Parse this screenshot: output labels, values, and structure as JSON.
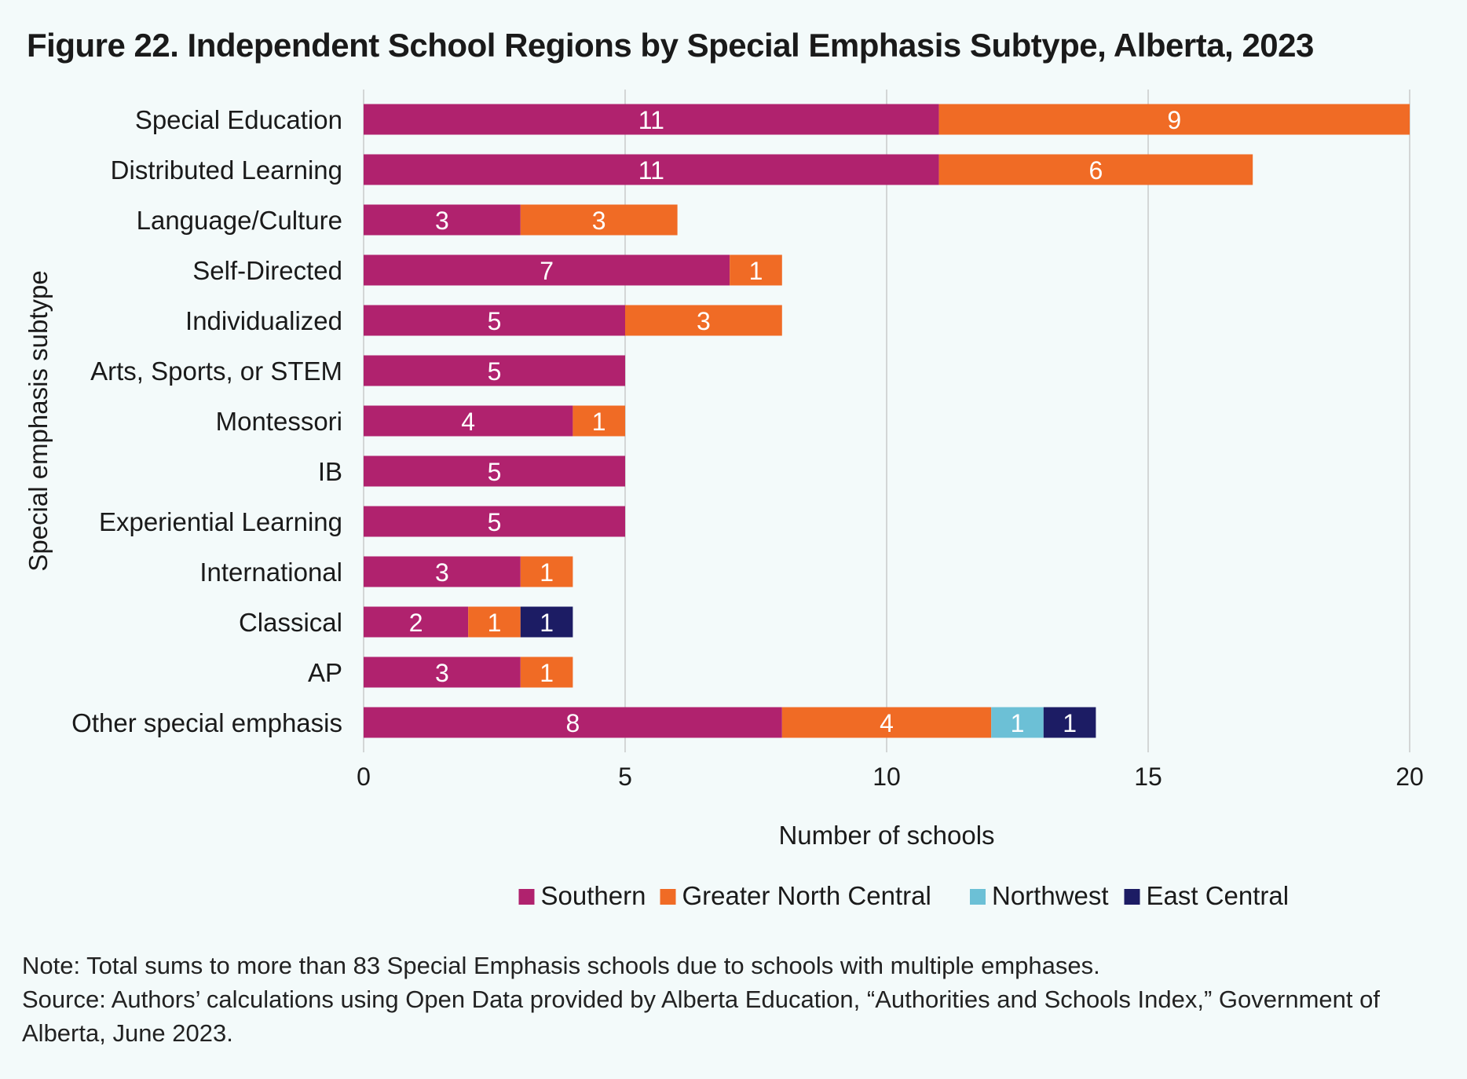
{
  "chart_data": {
    "type": "bar",
    "orientation": "horizontal",
    "stacked": true,
    "title": "Figure 22. Independent School Regions by Special Emphasis Subtype, Alberta, 2023",
    "xlabel": "Number of schools",
    "ylabel": "Special emphasis subtype",
    "xlim": [
      0,
      20
    ],
    "xticks": [
      0,
      5,
      10,
      15,
      20
    ],
    "grid": "vertical",
    "legend_position": "bottom",
    "categories": [
      "Special Education",
      "Distributed Learning",
      "Language/Culture",
      "Self-Directed",
      "Individualized",
      "Arts, Sports, or STEM",
      "Montessori",
      "IB",
      "Experiential Learning",
      "International",
      "Classical",
      "AP",
      "Other special emphasis"
    ],
    "series": [
      {
        "name": "Southern",
        "color": "#b0226e",
        "values": [
          11,
          11,
          3,
          7,
          5,
          5,
          4,
          5,
          5,
          3,
          2,
          3,
          8
        ]
      },
      {
        "name": "Greater North Central",
        "color": "#f06b25",
        "values": [
          9,
          6,
          3,
          1,
          3,
          0,
          1,
          0,
          0,
          1,
          1,
          1,
          4
        ]
      },
      {
        "name": "Northwest",
        "color": "#6cc0d6",
        "values": [
          0,
          0,
          0,
          0,
          0,
          0,
          0,
          0,
          0,
          0,
          0,
          0,
          1
        ]
      },
      {
        "name": "East Central",
        "color": "#1c1c64",
        "values": [
          0,
          0,
          0,
          0,
          0,
          0,
          0,
          0,
          0,
          0,
          1,
          0,
          1
        ]
      }
    ]
  },
  "notes": {
    "note": "Note: Total sums to more than 83 Special Emphasis schools due to schools with multiple emphases.",
    "source": "Source: Authors’ calculations using Open Data provided by Alberta Education, “Authorities and Schools Index,” Government of Alberta, June 2023."
  }
}
